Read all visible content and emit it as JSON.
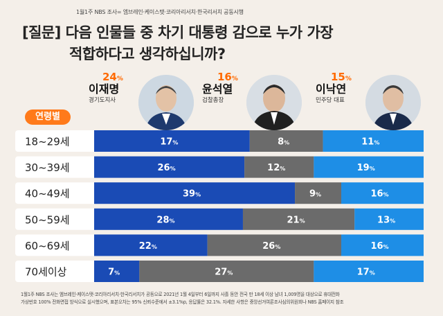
{
  "source_top": "1월1주 NBS 조사= 엠브레인·케이스탯·코리아리서치·한국리서치 공동시행",
  "question": {
    "line1": "[질문] 다음 인물들 중 차기 대통령 감으로 누가 가장",
    "line2": "적합하다고 생각하십니까?"
  },
  "candidates": [
    {
      "pct": "24",
      "unit": "%",
      "name": "이재명",
      "role": "경기도지사"
    },
    {
      "pct": "16",
      "unit": "%",
      "name": "윤석열",
      "role": "검찰총장"
    },
    {
      "pct": "15",
      "unit": "%",
      "name": "이낙연",
      "role": "민주당 대표"
    }
  ],
  "age_label": "연령별",
  "colors": {
    "lee_jm": "#1a4bb5",
    "yoon": "#6b6b6b",
    "lee_ny": "#1e8ee6",
    "accent": "#ff6a00"
  },
  "footnote": {
    "line1": "1월1주 NBS 조사는 엠브레인·케이스탯·코리아리서치·한국리서치가 공동으로 2021년 1월 4일부터 6일까지 사흘 동안 전국 만 18세 이상 남녀 1,009명을 대상으로 휴대전화",
    "line2": "가상번호 100% 전화면접 방식으로 실시했으며, 표본오차는 95% 신뢰수준에서 ±3.1%p, 응답률은 32.1%. 자세한 사항은 중앙선거여론조사심의위원회나 NBS 홈페이지 참조"
  },
  "chart_data": {
    "type": "bar",
    "stacked": true,
    "categories": [
      "18~29세",
      "30~39세",
      "40~49세",
      "50~59세",
      "60~69세",
      "70세이상"
    ],
    "series": [
      {
        "name": "이재명",
        "values": [
          17,
          26,
          39,
          28,
          22,
          7
        ]
      },
      {
        "name": "윤석열",
        "values": [
          8,
          12,
          9,
          21,
          26,
          27
        ]
      },
      {
        "name": "이낙연",
        "values": [
          11,
          19,
          16,
          13,
          16,
          17
        ]
      }
    ],
    "unit": "%"
  }
}
